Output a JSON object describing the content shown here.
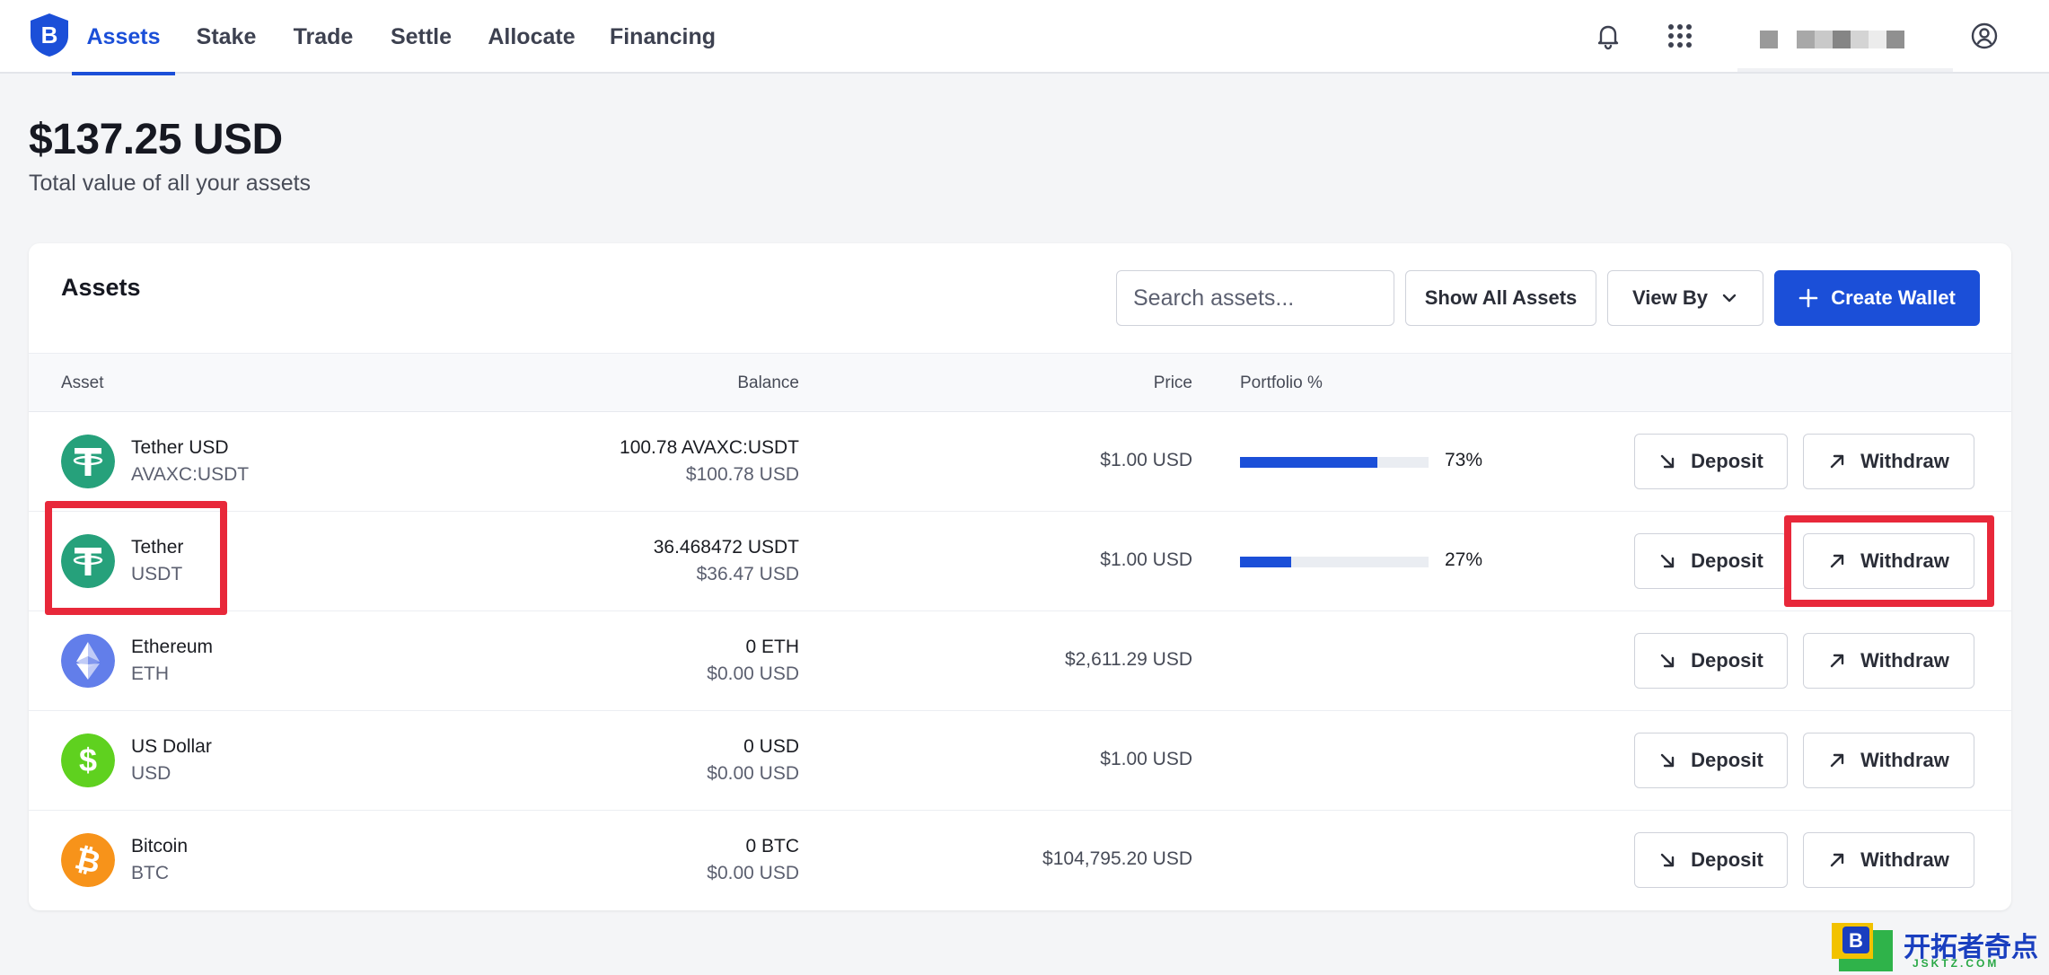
{
  "nav": {
    "logo": "B",
    "tabs": [
      {
        "label": "Assets",
        "active": true
      },
      {
        "label": "Stake",
        "active": false
      },
      {
        "label": "Trade",
        "active": false
      },
      {
        "label": "Settle",
        "active": false
      },
      {
        "label": "Allocate",
        "active": false
      },
      {
        "label": "Financing",
        "active": false
      }
    ],
    "icons": [
      "bell-icon",
      "grid-icon",
      "user-circle-icon"
    ]
  },
  "summary": {
    "total": "$137.25 USD",
    "caption": "Total value of all your assets"
  },
  "assets_card": {
    "title": "Assets",
    "search_placeholder": "Search assets...",
    "show_all_label": "Show All Assets",
    "view_by_label": "View By",
    "create_wallet_label": "Create Wallet",
    "columns": {
      "asset": "Asset",
      "balance": "Balance",
      "price": "Price",
      "portfolio": "Portfolio %"
    },
    "deposit_label": "Deposit",
    "withdraw_label": "Withdraw",
    "rows": [
      {
        "name": "Tether USD",
        "symbol": "AVAXC:USDT",
        "balance": "100.78 AVAXC:USDT",
        "balance_usd": "$100.78 USD",
        "price": "$1.00 USD",
        "portfolio": "73%",
        "portfolio_fraction": 0.73,
        "icon": "tether-icon",
        "color": "#26a17b"
      },
      {
        "name": "Tether",
        "symbol": "USDT",
        "balance": "36.468472 USDT",
        "balance_usd": "$36.47 USD",
        "price": "$1.00 USD",
        "portfolio": "27%",
        "portfolio_fraction": 0.27,
        "icon": "tether-icon",
        "color": "#26a17b"
      },
      {
        "name": "Ethereum",
        "symbol": "ETH",
        "balance": "0 ETH",
        "balance_usd": "$0.00 USD",
        "price": "$2,611.29 USD",
        "portfolio": "",
        "icon": "ethereum-icon",
        "color": "#627eea"
      },
      {
        "name": "US Dollar",
        "symbol": "USD",
        "balance": "0 USD",
        "balance_usd": "$0.00 USD",
        "price": "$1.00 USD",
        "portfolio": "",
        "icon": "dollar-icon",
        "color": "#5fd11f"
      },
      {
        "name": "Bitcoin",
        "symbol": "BTC",
        "balance": "0 BTC",
        "balance_usd": "$0.00 USD",
        "price": "$104,795.20 USD",
        "portfolio": "",
        "icon": "bitcoin-icon",
        "color": "#f7931a"
      }
    ]
  },
  "colors": {
    "accent": "#1b4fd8",
    "highlight": "#e8283a"
  },
  "watermark": {
    "text": "开拓者奇点",
    "sub": "JSKTZ.COM"
  }
}
